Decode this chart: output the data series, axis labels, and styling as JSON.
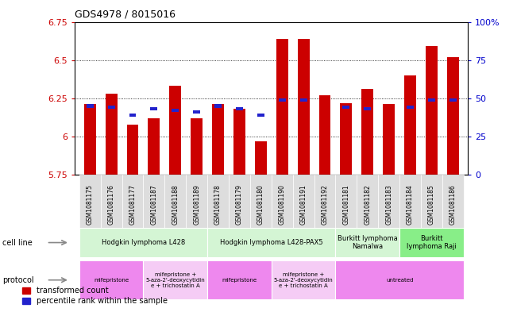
{
  "title": "GDS4978 / 8015016",
  "samples": [
    "GSM1081175",
    "GSM1081176",
    "GSM1081177",
    "GSM1081187",
    "GSM1081188",
    "GSM1081189",
    "GSM1081178",
    "GSM1081179",
    "GSM1081180",
    "GSM1081190",
    "GSM1081191",
    "GSM1081192",
    "GSM1081181",
    "GSM1081182",
    "GSM1081183",
    "GSM1081184",
    "GSM1081185",
    "GSM1081186"
  ],
  "red_values": [
    6.21,
    6.28,
    6.08,
    6.12,
    6.33,
    6.12,
    6.21,
    6.18,
    5.97,
    6.64,
    6.64,
    6.27,
    6.22,
    6.31,
    6.21,
    6.4,
    6.59,
    6.52
  ],
  "blue_values": [
    6.2,
    6.19,
    6.14,
    6.18,
    6.17,
    6.16,
    6.2,
    6.18,
    6.14,
    6.24,
    6.24,
    null,
    6.19,
    6.18,
    null,
    6.19,
    6.24,
    6.24
  ],
  "baseline": 5.75,
  "ylim_left": [
    5.75,
    6.75
  ],
  "yticks_left": [
    5.75,
    6.0,
    6.25,
    6.5,
    6.75
  ],
  "ytick_labels_left": [
    "5.75",
    "6",
    "6.25",
    "6.5",
    "6.75"
  ],
  "ytick_labels_right": [
    "0",
    "25",
    "50",
    "75",
    "100%"
  ],
  "grid_values": [
    6.0,
    6.25,
    6.5
  ],
  "bar_color": "#cc0000",
  "blue_color": "#2222cc",
  "cell_line_groups": [
    {
      "label": "Hodgkin lymphoma L428",
      "start": 0,
      "end": 5,
      "color": "#d4f5d4"
    },
    {
      "label": "Hodgkin lymphoma L428-PAX5",
      "start": 6,
      "end": 11,
      "color": "#d4f5d4"
    },
    {
      "label": "Burkitt lymphoma\nNamalwa",
      "start": 12,
      "end": 14,
      "color": "#d4f5d4"
    },
    {
      "label": "Burkitt\nlymphoma Raji",
      "start": 15,
      "end": 17,
      "color": "#88ee88"
    }
  ],
  "protocol_groups": [
    {
      "label": "mifepristone",
      "start": 0,
      "end": 2,
      "color": "#ee88ee"
    },
    {
      "label": "mifepristone +\n5-aza-2'-deoxycytidin\ne + trichostatin A",
      "start": 3,
      "end": 5,
      "color": "#f5ccf5"
    },
    {
      "label": "mifepristone",
      "start": 6,
      "end": 8,
      "color": "#ee88ee"
    },
    {
      "label": "mifepristone +\n5-aza-2'-deoxycytidin\ne + trichostatin A",
      "start": 9,
      "end": 11,
      "color": "#f5ccf5"
    },
    {
      "label": "untreated",
      "start": 12,
      "end": 17,
      "color": "#ee88ee"
    }
  ],
  "legend_red": "transformed count",
  "legend_blue": "percentile rank within the sample",
  "bar_width": 0.55,
  "left_label_color": "#cc0000",
  "right_label_color": "#0000cc",
  "tick_box_color": "#dddddd",
  "left_arrow_color": "#888888"
}
